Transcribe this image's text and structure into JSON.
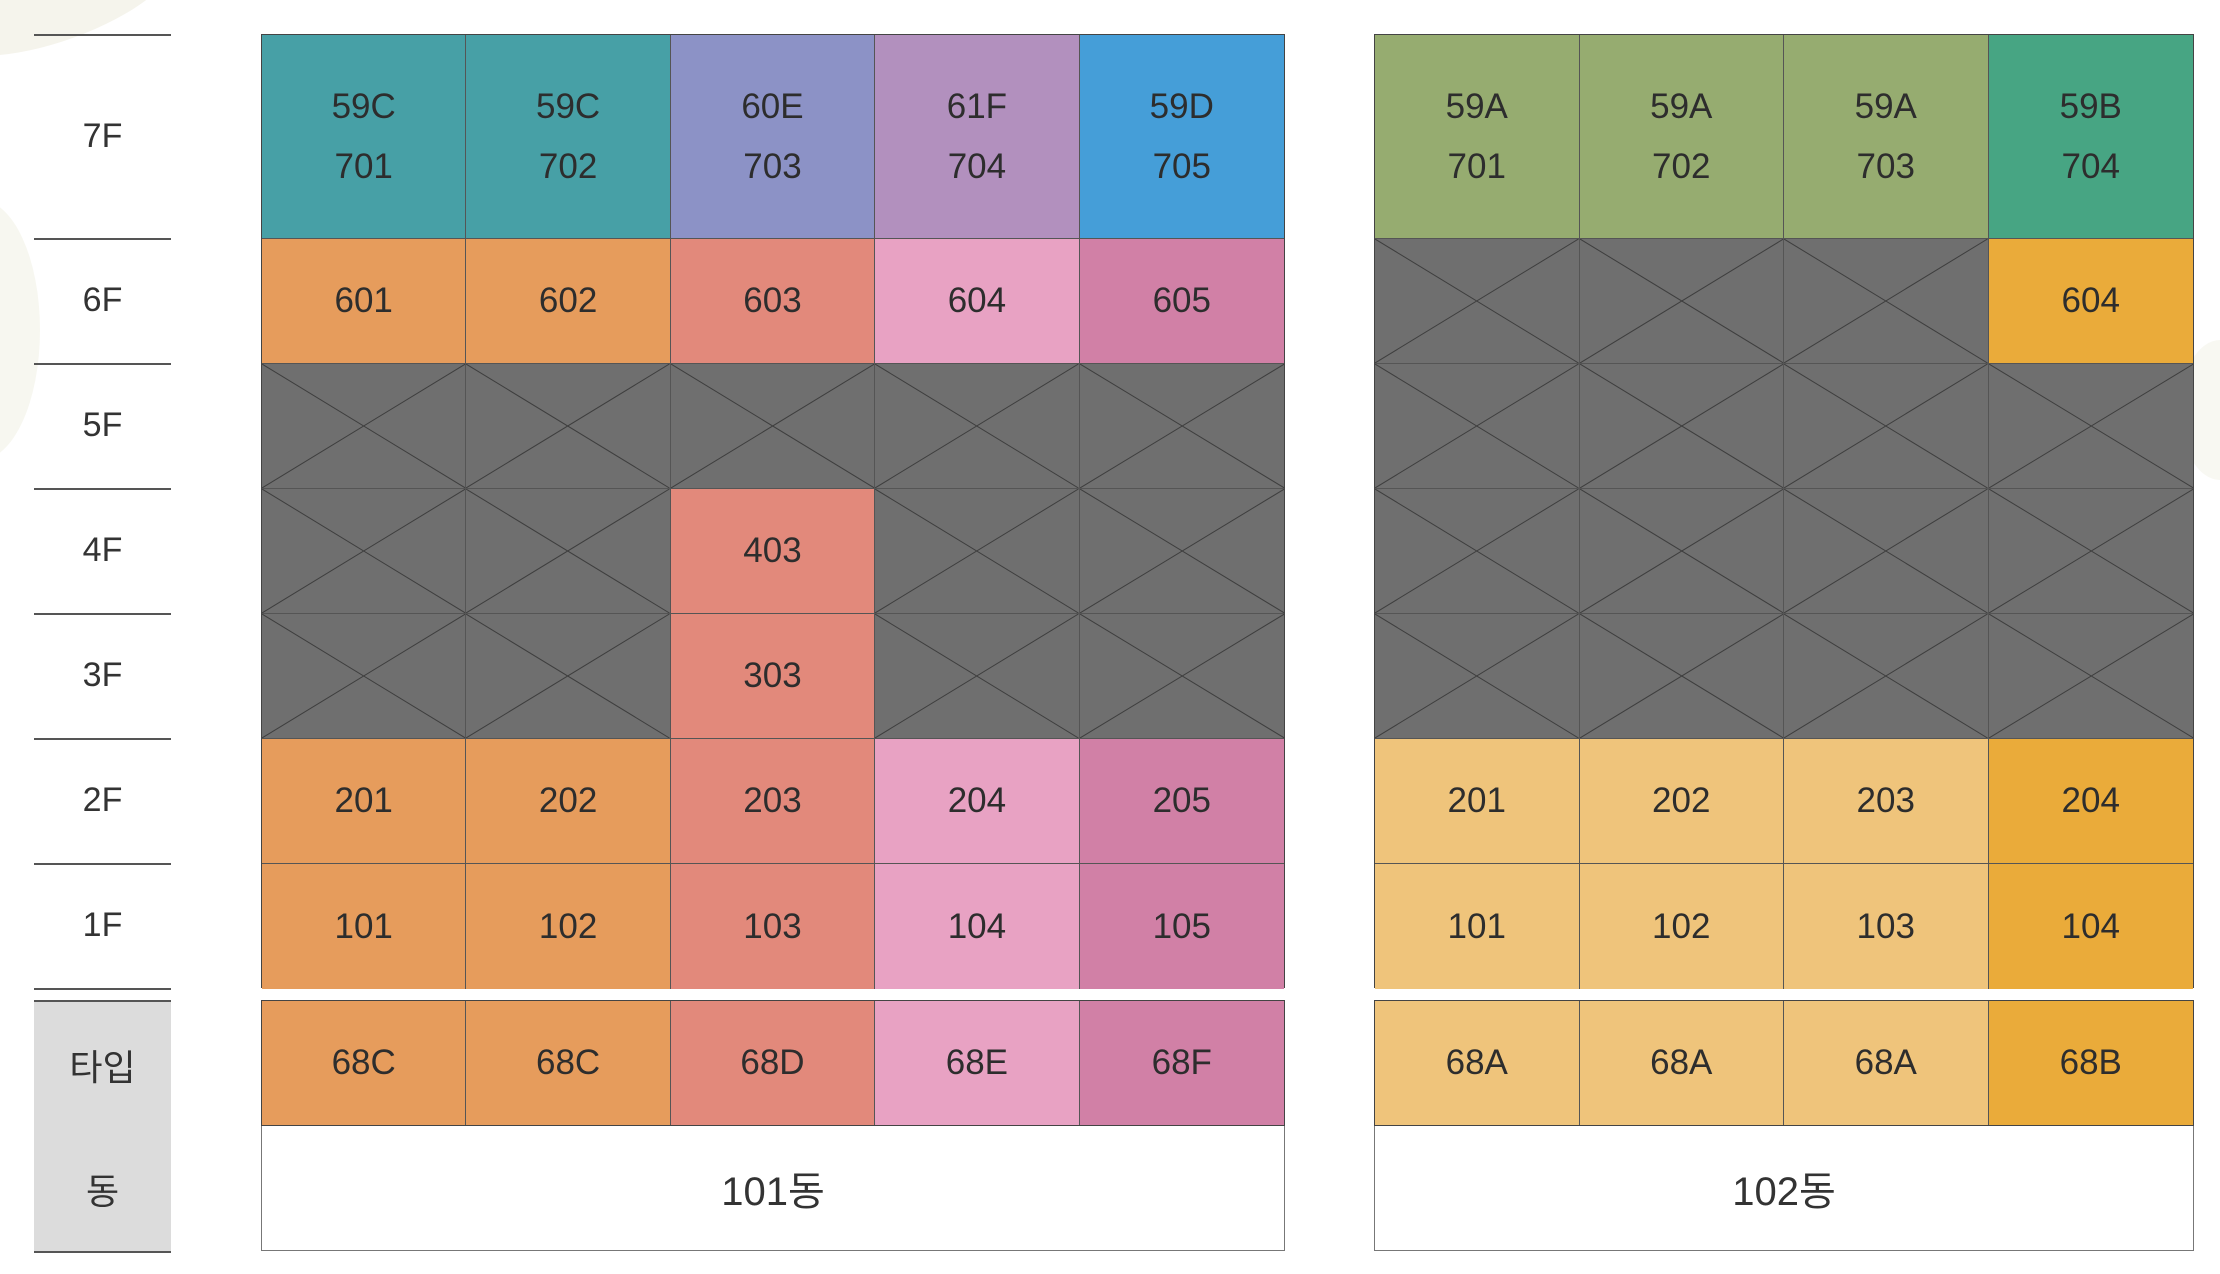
{
  "floors": [
    "7F",
    "6F",
    "5F",
    "4F",
    "3F",
    "2F",
    "1F"
  ],
  "row_labels": {
    "type": "타입",
    "dong": "동"
  },
  "colors": {
    "blocked": "#6f6f6f",
    "59C": "#47a0a6",
    "60E": "#8c92c6",
    "61F": "#b290be",
    "59D": "#459ed8",
    "59A": "#96ac70",
    "59B": "#47a583",
    "68C": "#e69c5c",
    "68D": "#e2897b",
    "68E": "#e8a2c3",
    "68F": "#d180a6",
    "68A": "#efc47b",
    "68B": "#eaab3a"
  },
  "buildings": [
    {
      "name": "101동",
      "types": [
        "68C",
        "68C",
        "68D",
        "68E",
        "68F"
      ],
      "rows": [
        [
          {
            "type": "59C",
            "unit": "701"
          },
          {
            "type": "59C",
            "unit": "702"
          },
          {
            "type": "60E",
            "unit": "703"
          },
          {
            "type": "61F",
            "unit": "704"
          },
          {
            "type": "59D",
            "unit": "705"
          }
        ],
        [
          {
            "unit": "601",
            "color": "68C"
          },
          {
            "unit": "602",
            "color": "68C"
          },
          {
            "unit": "603",
            "color": "68D"
          },
          {
            "unit": "604",
            "color": "68E"
          },
          {
            "unit": "605",
            "color": "68F"
          }
        ],
        [
          null,
          null,
          null,
          null,
          null
        ],
        [
          null,
          null,
          {
            "unit": "403",
            "color": "68D"
          },
          null,
          null
        ],
        [
          null,
          null,
          {
            "unit": "303",
            "color": "68D"
          },
          null,
          null
        ],
        [
          {
            "unit": "201",
            "color": "68C"
          },
          {
            "unit": "202",
            "color": "68C"
          },
          {
            "unit": "203",
            "color": "68D"
          },
          {
            "unit": "204",
            "color": "68E"
          },
          {
            "unit": "205",
            "color": "68F"
          }
        ],
        [
          {
            "unit": "101",
            "color": "68C"
          },
          {
            "unit": "102",
            "color": "68C"
          },
          {
            "unit": "103",
            "color": "68D"
          },
          {
            "unit": "104",
            "color": "68E"
          },
          {
            "unit": "105",
            "color": "68F"
          }
        ]
      ]
    },
    {
      "name": "102동",
      "types": [
        "68A",
        "68A",
        "68A",
        "68B"
      ],
      "rows": [
        [
          {
            "type": "59A",
            "unit": "701"
          },
          {
            "type": "59A",
            "unit": "702"
          },
          {
            "type": "59A",
            "unit": "703"
          },
          {
            "type": "59B",
            "unit": "704"
          }
        ],
        [
          null,
          null,
          null,
          {
            "unit": "604",
            "color": "68B"
          }
        ],
        [
          null,
          null,
          null,
          null
        ],
        [
          null,
          null,
          null,
          null
        ],
        [
          null,
          null,
          null,
          null
        ],
        [
          {
            "unit": "201",
            "color": "68A"
          },
          {
            "unit": "202",
            "color": "68A"
          },
          {
            "unit": "203",
            "color": "68A"
          },
          {
            "unit": "204",
            "color": "68B"
          }
        ],
        [
          {
            "unit": "101",
            "color": "68A"
          },
          {
            "unit": "102",
            "color": "68A"
          },
          {
            "unit": "103",
            "color": "68A"
          },
          {
            "unit": "104",
            "color": "68B"
          }
        ]
      ]
    }
  ]
}
